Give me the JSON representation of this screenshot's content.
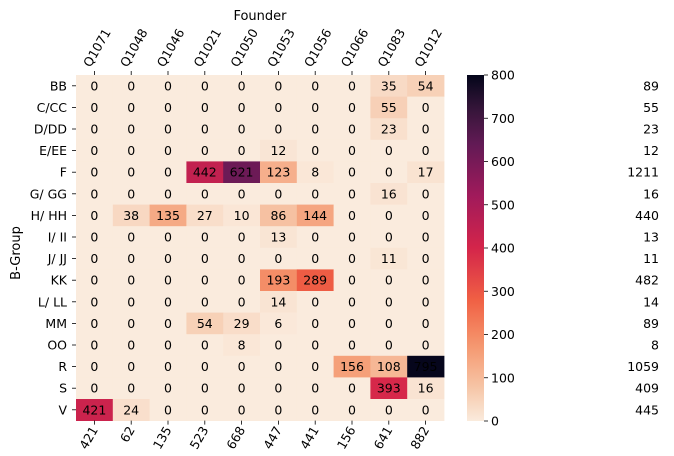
{
  "chart_data": {
    "type": "heatmap",
    "x_title": "Founder",
    "y_title": "B-Group",
    "columns": [
      "Q1071",
      "Q1048",
      "Q1046",
      "Q1021",
      "Q1050",
      "Q1053",
      "Q1056",
      "Q1066",
      "Q1083",
      "Q1012"
    ],
    "rows": [
      "BB",
      "C/CC",
      "D/DD",
      "E/EE",
      "F",
      "G/ GG",
      "H/ HH",
      "I/ II",
      "J/ JJ",
      "KK",
      "L/ LL",
      "MM",
      "OO",
      "R",
      "S",
      "V"
    ],
    "values": [
      [
        0,
        0,
        0,
        0,
        0,
        0,
        0,
        0,
        35,
        54
      ],
      [
        0,
        0,
        0,
        0,
        0,
        0,
        0,
        0,
        55,
        0
      ],
      [
        0,
        0,
        0,
        0,
        0,
        0,
        0,
        0,
        23,
        0
      ],
      [
        0,
        0,
        0,
        0,
        0,
        12,
        0,
        0,
        0,
        0
      ],
      [
        0,
        0,
        0,
        442,
        621,
        123,
        8,
        0,
        0,
        17
      ],
      [
        0,
        0,
        0,
        0,
        0,
        0,
        0,
        0,
        16,
        0
      ],
      [
        0,
        38,
        135,
        27,
        10,
        86,
        144,
        0,
        0,
        0
      ],
      [
        0,
        0,
        0,
        0,
        0,
        13,
        0,
        0,
        0,
        0
      ],
      [
        0,
        0,
        0,
        0,
        0,
        0,
        0,
        0,
        11,
        0
      ],
      [
        0,
        0,
        0,
        0,
        0,
        193,
        289,
        0,
        0,
        0
      ],
      [
        0,
        0,
        0,
        0,
        0,
        14,
        0,
        0,
        0,
        0
      ],
      [
        0,
        0,
        0,
        54,
        29,
        6,
        0,
        0,
        0,
        0
      ],
      [
        0,
        0,
        0,
        0,
        8,
        0,
        0,
        0,
        0,
        0
      ],
      [
        0,
        0,
        0,
        0,
        0,
        0,
        0,
        156,
        108,
        795
      ],
      [
        0,
        0,
        0,
        0,
        0,
        0,
        0,
        0,
        393,
        16
      ],
      [
        421,
        24,
        0,
        0,
        0,
        0,
        0,
        0,
        0,
        0
      ]
    ],
    "row_totals": [
      89,
      55,
      23,
      12,
      1211,
      16,
      440,
      13,
      11,
      482,
      14,
      89,
      8,
      1059,
      409,
      445
    ],
    "col_totals": [
      421,
      62,
      135,
      523,
      668,
      447,
      441,
      156,
      641,
      882
    ],
    "colorbar": {
      "min": 0,
      "max": 800,
      "ticks": [
        0,
        100,
        200,
        300,
        400,
        500,
        600,
        700,
        800
      ]
    }
  }
}
